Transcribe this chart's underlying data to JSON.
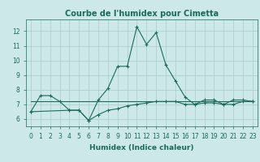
{
  "title": "Courbe de l'humidex pour Cimetta",
  "xlabel": "Humidex (Indice chaleur)",
  "bg_color": "#cce8e8",
  "grid_color": "#aacccc",
  "line_color": "#1a6b5a",
  "x_values": [
    0,
    1,
    2,
    3,
    4,
    5,
    6,
    7,
    8,
    9,
    10,
    11,
    12,
    13,
    14,
    15,
    16,
    17,
    18,
    19,
    20,
    21,
    22,
    23
  ],
  "line1": [
    6.5,
    7.6,
    7.6,
    7.2,
    6.6,
    6.6,
    5.9,
    7.3,
    8.1,
    9.6,
    9.6,
    12.3,
    11.1,
    11.9,
    9.7,
    8.6,
    7.5,
    7.0,
    7.3,
    7.3,
    7.0,
    7.3,
    7.3,
    7.2
  ],
  "line2": [
    7.2,
    7.2,
    7.2,
    7.2,
    7.2,
    7.2,
    7.2,
    7.2,
    7.2,
    7.2,
    7.2,
    7.2,
    7.2,
    7.2,
    7.2,
    7.2,
    7.2,
    7.2,
    7.2,
    7.2,
    7.2,
    7.2,
    7.2,
    7.2
  ],
  "line3": [
    6.5,
    null,
    null,
    null,
    6.6,
    6.6,
    5.9,
    6.3,
    6.6,
    6.7,
    6.9,
    7.0,
    7.1,
    7.2,
    7.2,
    7.2,
    7.0,
    7.0,
    7.1,
    7.1,
    7.0,
    7.0,
    7.2,
    7.2
  ],
  "ylim": [
    5.5,
    12.8
  ],
  "yticks": [
    6,
    7,
    8,
    9,
    10,
    11,
    12
  ],
  "xticks": [
    0,
    1,
    2,
    3,
    4,
    5,
    6,
    7,
    8,
    9,
    10,
    11,
    12,
    13,
    14,
    15,
    16,
    17,
    18,
    19,
    20,
    21,
    22,
    23
  ],
  "title_fontsize": 7,
  "label_fontsize": 6.5,
  "tick_fontsize": 5.5
}
